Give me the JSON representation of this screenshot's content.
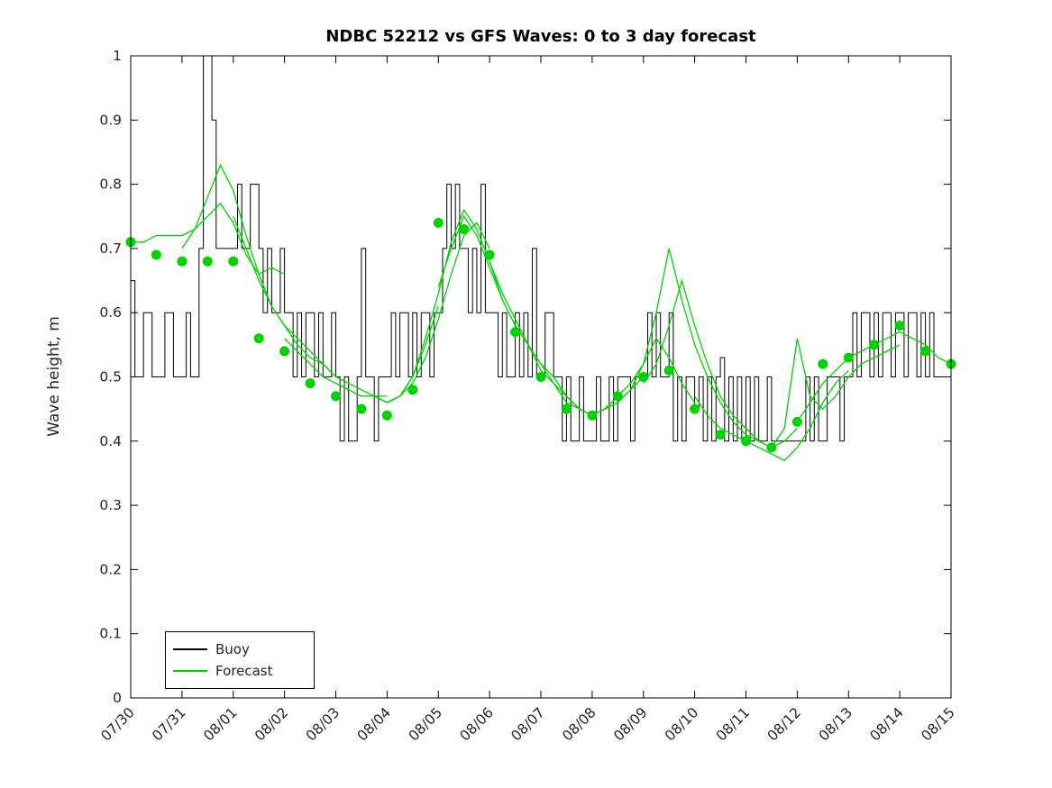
{
  "chart_data": {
    "type": "line",
    "title": "NDBC 52212 vs GFS Waves: 0 to 3 day forecast",
    "xlabel": "",
    "ylabel": "Wave height, m",
    "ylim": [
      0,
      1
    ],
    "x_range_days": [
      0,
      16
    ],
    "grid": "off",
    "legend_position": "bottom-left-inside",
    "yticks": [
      0,
      0.1,
      0.2,
      0.3,
      0.4,
      0.5,
      0.6,
      0.7,
      0.8,
      0.9,
      1
    ],
    "ytick_labels": [
      "0",
      "0.1",
      "0.2",
      "0.3",
      "0.4",
      "0.5",
      "0.6",
      "0.7",
      "0.8",
      "0.9",
      "1"
    ],
    "xtick_labels": [
      "07/30",
      "07/31",
      "08/01",
      "08/02",
      "08/03",
      "08/04",
      "08/05",
      "08/06",
      "08/07",
      "08/08",
      "08/09",
      "08/10",
      "08/11",
      "08/12",
      "08/13",
      "08/14",
      "08/15"
    ],
    "colors": {
      "buoy": "#000000",
      "forecast": "#00d300",
      "axis": "#000000",
      "tick_text": "#262626"
    },
    "legend": [
      {
        "label": "Buoy",
        "color": "#000000"
      },
      {
        "label": "Forecast",
        "color": "#00d300"
      }
    ],
    "buoy": {
      "name": "Buoy",
      "start_day": 0,
      "dt_days": 0.0833333,
      "values": [
        0.65,
        0.5,
        0.5,
        0.6,
        0.6,
        0.5,
        0.5,
        0.5,
        0.6,
        0.6,
        0.5,
        0.5,
        0.5,
        0.6,
        0.5,
        0.5,
        0.7,
        1.0,
        1.0,
        0.9,
        0.7,
        0.7,
        0.7,
        0.7,
        0.7,
        0.8,
        0.7,
        0.7,
        0.8,
        0.8,
        0.7,
        0.6,
        0.7,
        0.6,
        0.6,
        0.7,
        0.6,
        0.6,
        0.5,
        0.6,
        0.5,
        0.6,
        0.6,
        0.5,
        0.6,
        0.5,
        0.5,
        0.6,
        0.5,
        0.4,
        0.5,
        0.4,
        0.4,
        0.5,
        0.7,
        0.5,
        0.5,
        0.4,
        0.5,
        0.5,
        0.5,
        0.6,
        0.5,
        0.6,
        0.6,
        0.5,
        0.6,
        0.5,
        0.6,
        0.6,
        0.5,
        0.6,
        0.6,
        0.7,
        0.8,
        0.7,
        0.8,
        0.7,
        0.7,
        0.6,
        0.7,
        0.6,
        0.8,
        0.6,
        0.6,
        0.6,
        0.5,
        0.6,
        0.5,
        0.5,
        0.6,
        0.5,
        0.6,
        0.5,
        0.7,
        0.5,
        0.5,
        0.6,
        0.6,
        0.5,
        0.5,
        0.4,
        0.5,
        0.4,
        0.4,
        0.5,
        0.4,
        0.4,
        0.4,
        0.5,
        0.4,
        0.4,
        0.5,
        0.4,
        0.5,
        0.5,
        0.5,
        0.4,
        0.5,
        0.5,
        0.5,
        0.6,
        0.5,
        0.6,
        0.5,
        0.5,
        0.6,
        0.4,
        0.5,
        0.4,
        0.5,
        0.5,
        0.45,
        0.5,
        0.4,
        0.5,
        0.4,
        0.5,
        0.53,
        0.4,
        0.5,
        0.4,
        0.5,
        0.4,
        0.5,
        0.4,
        0.5,
        0.4,
        0.4,
        0.5,
        0.4,
        0.4,
        0.4,
        0.4,
        0.4,
        0.4,
        0.4,
        0.4,
        0.5,
        0.4,
        0.5,
        0.4,
        0.4,
        0.5,
        0.5,
        0.5,
        0.4,
        0.5,
        0.5,
        0.6,
        0.5,
        0.6,
        0.6,
        0.5,
        0.6,
        0.5,
        0.6,
        0.6,
        0.5,
        0.6,
        0.6,
        0.5,
        0.6,
        0.6,
        0.5,
        0.6,
        0.5,
        0.6,
        0.5,
        0.5,
        0.5,
        0.5,
        0.5
      ]
    },
    "forecast_runs": [
      {
        "start_day": 0,
        "dt_days": 0.25,
        "values": [
          0.71,
          0.71,
          0.72,
          0.72,
          0.72,
          0.73,
          0.75,
          0.77,
          0.74,
          0.69,
          0.66,
          0.67,
          0.66
        ]
      },
      {
        "start_day": 1,
        "dt_days": 0.25,
        "values": [
          0.7,
          0.73,
          0.78,
          0.83,
          0.79,
          0.72,
          0.66,
          0.61,
          0.58,
          0.55,
          0.53,
          0.52,
          0.5
        ]
      },
      {
        "start_day": 2,
        "dt_days": 0.25,
        "values": [
          0.75,
          0.7,
          0.65,
          0.61,
          0.58,
          0.56,
          0.54,
          0.52,
          0.5,
          0.49,
          0.48,
          0.47,
          0.47
        ]
      },
      {
        "start_day": 3,
        "dt_days": 0.25,
        "values": [
          0.56,
          0.54,
          0.52,
          0.5,
          0.49,
          0.48,
          0.47,
          0.47,
          0.46,
          0.47,
          0.5,
          0.55,
          0.61
        ]
      },
      {
        "start_day": 4,
        "dt_days": 0.25,
        "values": [
          0.49,
          0.48,
          0.47,
          0.47,
          0.46,
          0.47,
          0.49,
          0.53,
          0.59,
          0.66,
          0.72,
          0.74,
          0.7
        ]
      },
      {
        "start_day": 5,
        "dt_days": 0.25,
        "values": [
          0.46,
          0.47,
          0.5,
          0.56,
          0.63,
          0.71,
          0.76,
          0.73,
          0.68,
          0.63,
          0.59,
          0.55,
          0.52
        ]
      },
      {
        "start_day": 6,
        "dt_days": 0.25,
        "values": [
          0.64,
          0.7,
          0.75,
          0.72,
          0.67,
          0.62,
          0.58,
          0.55,
          0.52,
          0.49,
          0.47,
          0.45,
          0.44
        ]
      },
      {
        "start_day": 7,
        "dt_days": 0.25,
        "values": [
          0.68,
          0.62,
          0.58,
          0.55,
          0.51,
          0.49,
          0.46,
          0.45,
          0.44,
          0.45,
          0.46,
          0.48,
          0.5
        ]
      },
      {
        "start_day": 8,
        "dt_days": 0.25,
        "values": [
          0.52,
          0.5,
          0.47,
          0.45,
          0.44,
          0.45,
          0.47,
          0.49,
          0.52,
          0.56,
          0.53,
          0.49,
          0.46
        ]
      },
      {
        "start_day": 9,
        "dt_days": 0.25,
        "values": [
          0.44,
          0.45,
          0.46,
          0.48,
          0.52,
          0.6,
          0.7,
          0.62,
          0.55,
          0.5,
          0.46,
          0.43,
          0.41
        ]
      },
      {
        "start_day": 10,
        "dt_days": 0.25,
        "values": [
          0.49,
          0.52,
          0.58,
          0.65,
          0.58,
          0.52,
          0.47,
          0.44,
          0.42,
          0.4,
          0.39,
          0.4,
          0.42
        ]
      },
      {
        "start_day": 11,
        "dt_days": 0.25,
        "values": [
          0.47,
          0.44,
          0.42,
          0.41,
          0.4,
          0.39,
          0.38,
          0.37,
          0.39,
          0.42,
          0.46,
          0.49,
          0.51
        ]
      },
      {
        "start_day": 12,
        "dt_days": 0.25,
        "values": [
          0.41,
          0.4,
          0.39,
          0.42,
          0.56,
          0.47,
          0.45,
          0.47,
          0.5,
          0.52,
          0.53,
          0.54,
          0.55
        ]
      },
      {
        "start_day": 13,
        "dt_days": 0.25,
        "values": [
          0.43,
          0.46,
          0.49,
          0.51,
          0.53,
          0.54,
          0.55,
          0.56,
          0.57,
          0.56,
          0.55,
          0.53,
          0.52
        ]
      }
    ],
    "forecast_markers": {
      "x": [
        0,
        0.5,
        1,
        1.5,
        2,
        2.5,
        3,
        3.5,
        4,
        4.5,
        5,
        5.5,
        6,
        6.5,
        7,
        7.5,
        8,
        8.5,
        9,
        9.5,
        10,
        10.5,
        11,
        11.5,
        12,
        12.5,
        13,
        13.5,
        14,
        14.5,
        15,
        15.5,
        16
      ],
      "y": [
        0.71,
        0.69,
        0.68,
        0.68,
        0.68,
        0.56,
        0.54,
        0.49,
        0.47,
        0.45,
        0.44,
        0.48,
        0.74,
        0.73,
        0.69,
        0.57,
        0.5,
        0.45,
        0.44,
        0.47,
        0.5,
        0.51,
        0.45,
        0.41,
        0.4,
        0.39,
        0.43,
        0.52,
        0.53,
        0.55,
        0.58,
        0.54,
        0.52
      ]
    }
  }
}
